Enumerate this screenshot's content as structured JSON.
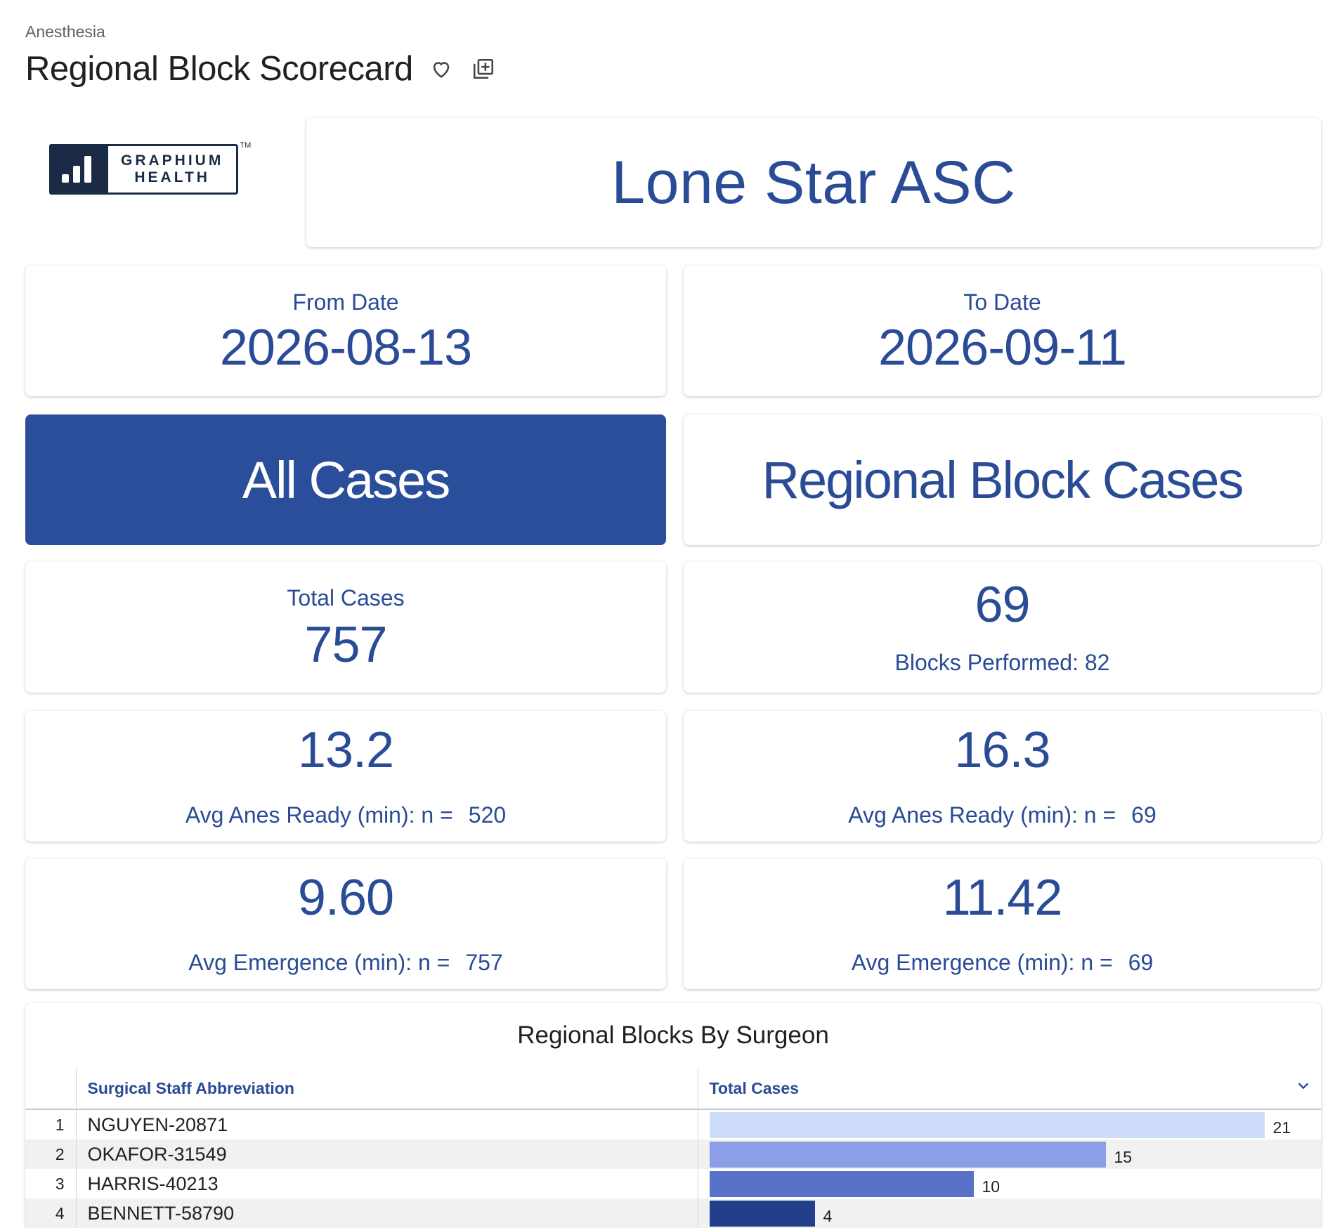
{
  "breadcrumb": "Anesthesia",
  "title": "Regional Block Scorecard",
  "icons": {
    "favorite": "heart-outline-icon",
    "add": "add-to-collection-icon"
  },
  "logo": {
    "line1": "GRAPHIUM",
    "line2": "HEALTH",
    "tm": "TM"
  },
  "facility": "Lone Star ASC",
  "from_date": {
    "label": "From Date",
    "value": "2026-08-13"
  },
  "to_date": {
    "label": "To Date",
    "value": "2026-09-11"
  },
  "sections": {
    "all": "All Cases",
    "regional": "Regional Block Cases"
  },
  "total_cases": {
    "label": "Total Cases",
    "value": "757"
  },
  "regional_cases": {
    "value": "69",
    "blocks_label": "Blocks Performed: 82"
  },
  "all_anes_ready": {
    "value": "13.2",
    "label": "Avg Anes Ready (min): n =",
    "n": "520"
  },
  "regional_anes_ready": {
    "value": "16.3",
    "label": "Avg Anes Ready (min): n =",
    "n": "69"
  },
  "all_emergence": {
    "value": "9.60",
    "label": "Avg Emergence (min): n =",
    "n": "757"
  },
  "regional_emergence": {
    "value": "11.42",
    "label": "Avg Emergence (min): n =",
    "n": "69"
  },
  "colors": {
    "accent": "#2a4e9a",
    "text_blue": "#2a4b96",
    "bars": [
      "#cddcf8",
      "#8c9ee8",
      "#5872c8",
      "#213f8a"
    ]
  },
  "table": {
    "title": "Regional Blocks By Surgeon",
    "columns": [
      "Surgical Staff Abbreviation",
      "Total Cases"
    ],
    "max": 21,
    "rows": [
      {
        "idx": "1",
        "name": "NGUYEN-20871",
        "value": 21
      },
      {
        "idx": "2",
        "name": "OKAFOR-31549",
        "value": 15
      },
      {
        "idx": "3",
        "name": "HARRIS-40213",
        "value": 10
      },
      {
        "idx": "4",
        "name": "BENNETT-58790",
        "value": 4
      }
    ]
  }
}
